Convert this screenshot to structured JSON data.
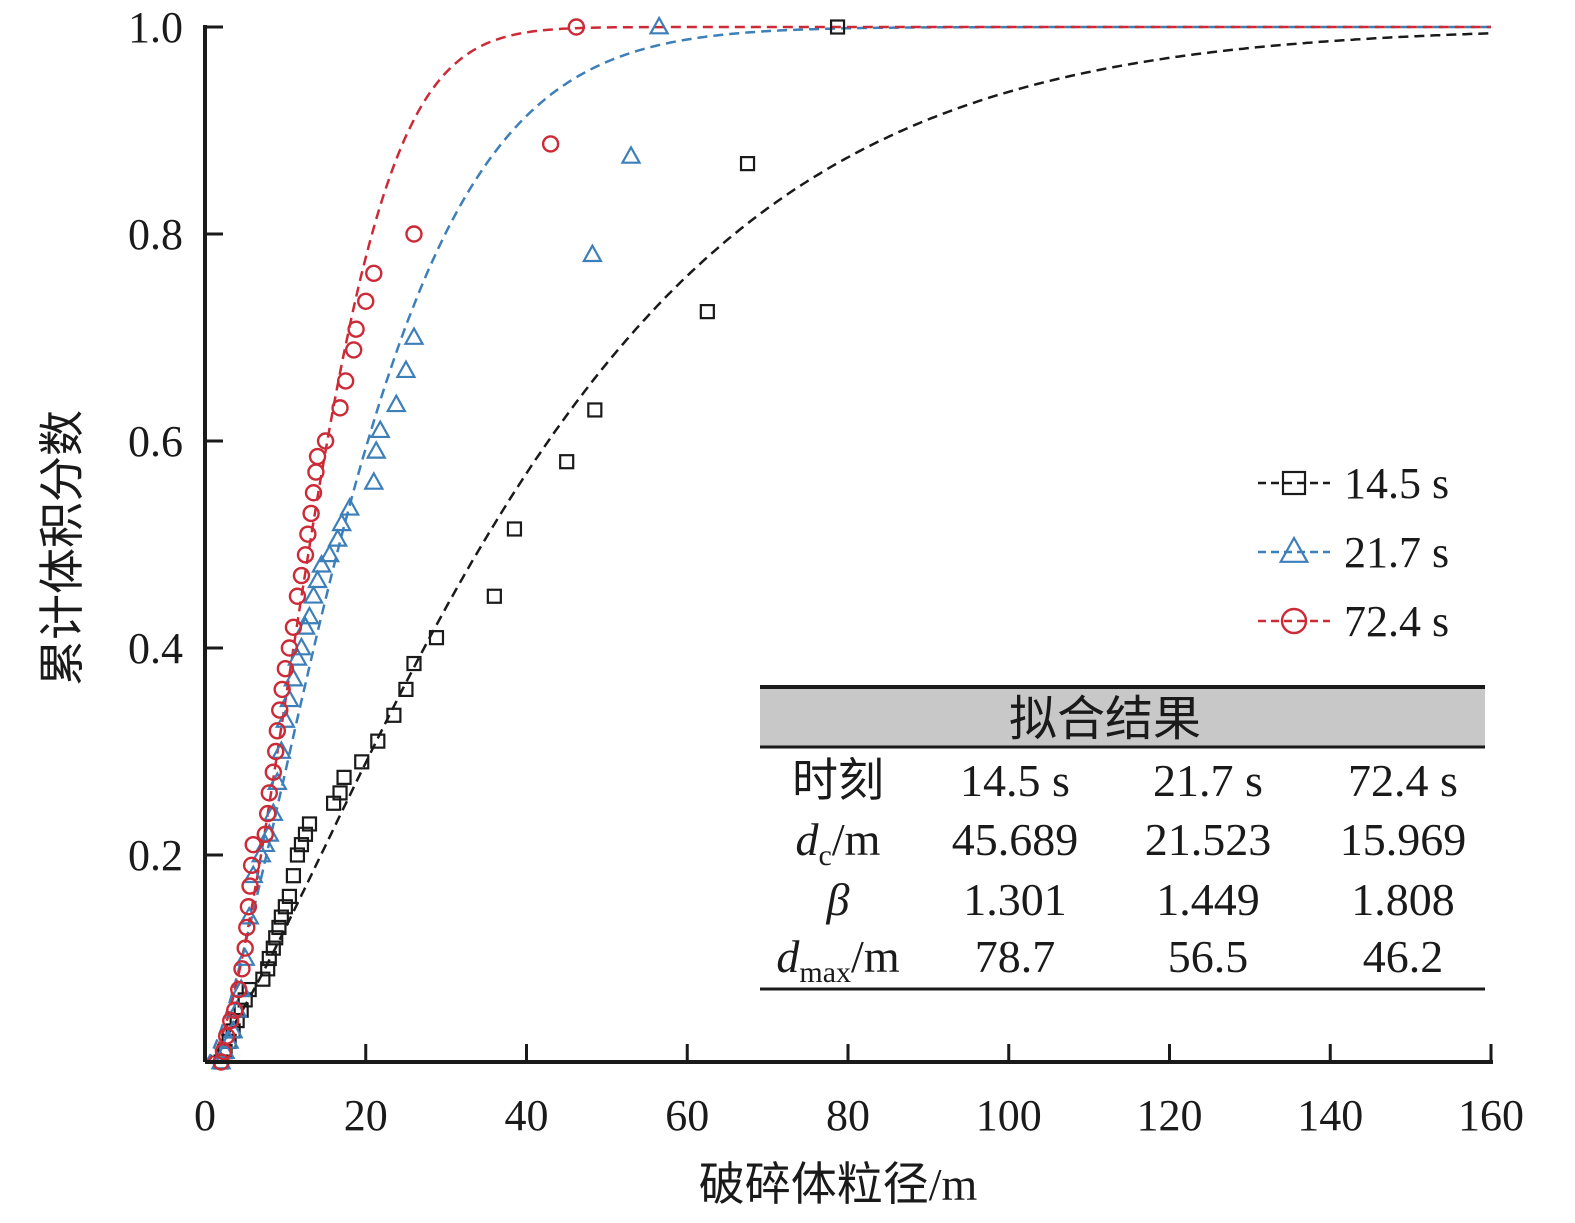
{
  "chart_data": {
    "type": "scatter",
    "xlabel": "破碎体粒径/m",
    "ylabel": "累计体积分数",
    "xlim": [
      0,
      160
    ],
    "ylim": [
      0,
      1.0
    ],
    "xticks": [
      "0",
      "20",
      "40",
      "60",
      "80",
      "100",
      "120",
      "140",
      "160"
    ],
    "yticks": [
      "0.2",
      "0.4",
      "0.6",
      "0.8",
      "1.0"
    ],
    "legend_position": "right",
    "series": [
      {
        "name": "14.5 s",
        "color": "#1a1a1a",
        "marker": "square",
        "fit": {
          "dc": 45.689,
          "beta": 1.301
        },
        "points": [
          [
            2.0,
            0.0
          ],
          [
            2.5,
            0.01
          ],
          [
            3.0,
            0.02
          ],
          [
            3.5,
            0.03
          ],
          [
            4.0,
            0.04
          ],
          [
            4.5,
            0.05
          ],
          [
            5.0,
            0.06
          ],
          [
            5.5,
            0.07
          ],
          [
            7.2,
            0.08
          ],
          [
            7.8,
            0.09
          ],
          [
            8.0,
            0.1
          ],
          [
            8.5,
            0.11
          ],
          [
            8.8,
            0.12
          ],
          [
            9.2,
            0.13
          ],
          [
            9.5,
            0.14
          ],
          [
            10.0,
            0.15
          ],
          [
            10.5,
            0.16
          ],
          [
            11.0,
            0.18
          ],
          [
            11.5,
            0.2
          ],
          [
            12.0,
            0.21
          ],
          [
            12.5,
            0.22
          ],
          [
            13.0,
            0.23
          ],
          [
            16.0,
            0.25
          ],
          [
            16.8,
            0.26
          ],
          [
            17.3,
            0.275
          ],
          [
            19.5,
            0.29
          ],
          [
            21.5,
            0.31
          ],
          [
            23.5,
            0.335
          ],
          [
            25.0,
            0.36
          ],
          [
            26.0,
            0.385
          ],
          [
            28.8,
            0.41
          ],
          [
            36.0,
            0.45
          ],
          [
            38.5,
            0.515
          ],
          [
            45.0,
            0.58
          ],
          [
            48.5,
            0.63
          ],
          [
            62.5,
            0.725
          ],
          [
            67.5,
            0.868
          ],
          [
            78.7,
            1.0
          ]
        ]
      },
      {
        "name": "21.7 s",
        "color": "#3d7fb9",
        "marker": "triangle",
        "fit": {
          "dc": 21.523,
          "beta": 1.449
        },
        "points": [
          [
            2.0,
            0.0
          ],
          [
            2.5,
            0.01
          ],
          [
            3.0,
            0.02
          ],
          [
            3.5,
            0.03
          ],
          [
            4.0,
            0.05
          ],
          [
            4.5,
            0.07
          ],
          [
            5.0,
            0.1
          ],
          [
            5.5,
            0.14
          ],
          [
            6.0,
            0.18
          ],
          [
            7.0,
            0.2
          ],
          [
            7.5,
            0.21
          ],
          [
            8.0,
            0.22
          ],
          [
            8.5,
            0.24
          ],
          [
            9.0,
            0.27
          ],
          [
            9.5,
            0.3
          ],
          [
            10.0,
            0.33
          ],
          [
            10.5,
            0.35
          ],
          [
            11.0,
            0.37
          ],
          [
            11.5,
            0.39
          ],
          [
            12.0,
            0.4
          ],
          [
            12.5,
            0.42
          ],
          [
            13.0,
            0.43
          ],
          [
            13.5,
            0.45
          ],
          [
            14.0,
            0.465
          ],
          [
            14.5,
            0.48
          ],
          [
            15.5,
            0.49
          ],
          [
            16.5,
            0.505
          ],
          [
            17.0,
            0.52
          ],
          [
            18.0,
            0.535
          ],
          [
            21.0,
            0.56
          ],
          [
            21.3,
            0.59
          ],
          [
            21.8,
            0.61
          ],
          [
            23.8,
            0.635
          ],
          [
            25.0,
            0.668
          ],
          [
            26.0,
            0.7
          ],
          [
            48.2,
            0.78
          ],
          [
            53.0,
            0.875
          ],
          [
            56.5,
            1.0
          ]
        ]
      },
      {
        "name": "72.4 s",
        "color": "#cc2a36",
        "marker": "circle",
        "fit": {
          "dc": 15.969,
          "beta": 1.808
        },
        "points": [
          [
            2.0,
            0.0
          ],
          [
            2.3,
            0.01
          ],
          [
            2.7,
            0.025
          ],
          [
            3.2,
            0.04
          ],
          [
            3.7,
            0.05
          ],
          [
            4.2,
            0.07
          ],
          [
            4.6,
            0.09
          ],
          [
            5.0,
            0.11
          ],
          [
            5.2,
            0.13
          ],
          [
            5.4,
            0.15
          ],
          [
            5.6,
            0.17
          ],
          [
            5.8,
            0.19
          ],
          [
            6.0,
            0.21
          ],
          [
            7.5,
            0.22
          ],
          [
            7.8,
            0.24
          ],
          [
            8.0,
            0.26
          ],
          [
            8.5,
            0.28
          ],
          [
            8.8,
            0.3
          ],
          [
            9.0,
            0.32
          ],
          [
            9.3,
            0.34
          ],
          [
            9.6,
            0.36
          ],
          [
            10.0,
            0.38
          ],
          [
            10.5,
            0.4
          ],
          [
            11.0,
            0.42
          ],
          [
            11.5,
            0.45
          ],
          [
            12.0,
            0.47
          ],
          [
            12.5,
            0.49
          ],
          [
            12.8,
            0.51
          ],
          [
            13.2,
            0.53
          ],
          [
            13.5,
            0.55
          ],
          [
            13.8,
            0.57
          ],
          [
            14.0,
            0.585
          ],
          [
            15.0,
            0.6
          ],
          [
            16.8,
            0.632
          ],
          [
            17.5,
            0.658
          ],
          [
            18.5,
            0.688
          ],
          [
            18.8,
            0.708
          ],
          [
            20.0,
            0.735
          ],
          [
            21.0,
            0.762
          ],
          [
            26.0,
            0.8
          ],
          [
            43.0,
            0.887
          ],
          [
            46.2,
            1.0
          ]
        ]
      }
    ],
    "table": {
      "title": "拟合结果",
      "row_label_header": "时刻",
      "columns": [
        "14.5 s",
        "21.7 s",
        "72.4 s"
      ],
      "dc_label_main": "d",
      "dc_label_sub": "c",
      "dc_label_unit": "/m",
      "dc_values": [
        "45.689",
        "21.523",
        "15.969"
      ],
      "beta_label": "β",
      "beta_values": [
        "1.301",
        "1.449",
        "1.808"
      ],
      "dmax_label_main": "d",
      "dmax_label_sub": "max",
      "dmax_label_unit": "/m",
      "dmax_values": [
        "78.7",
        "56.5",
        "46.2"
      ]
    }
  }
}
